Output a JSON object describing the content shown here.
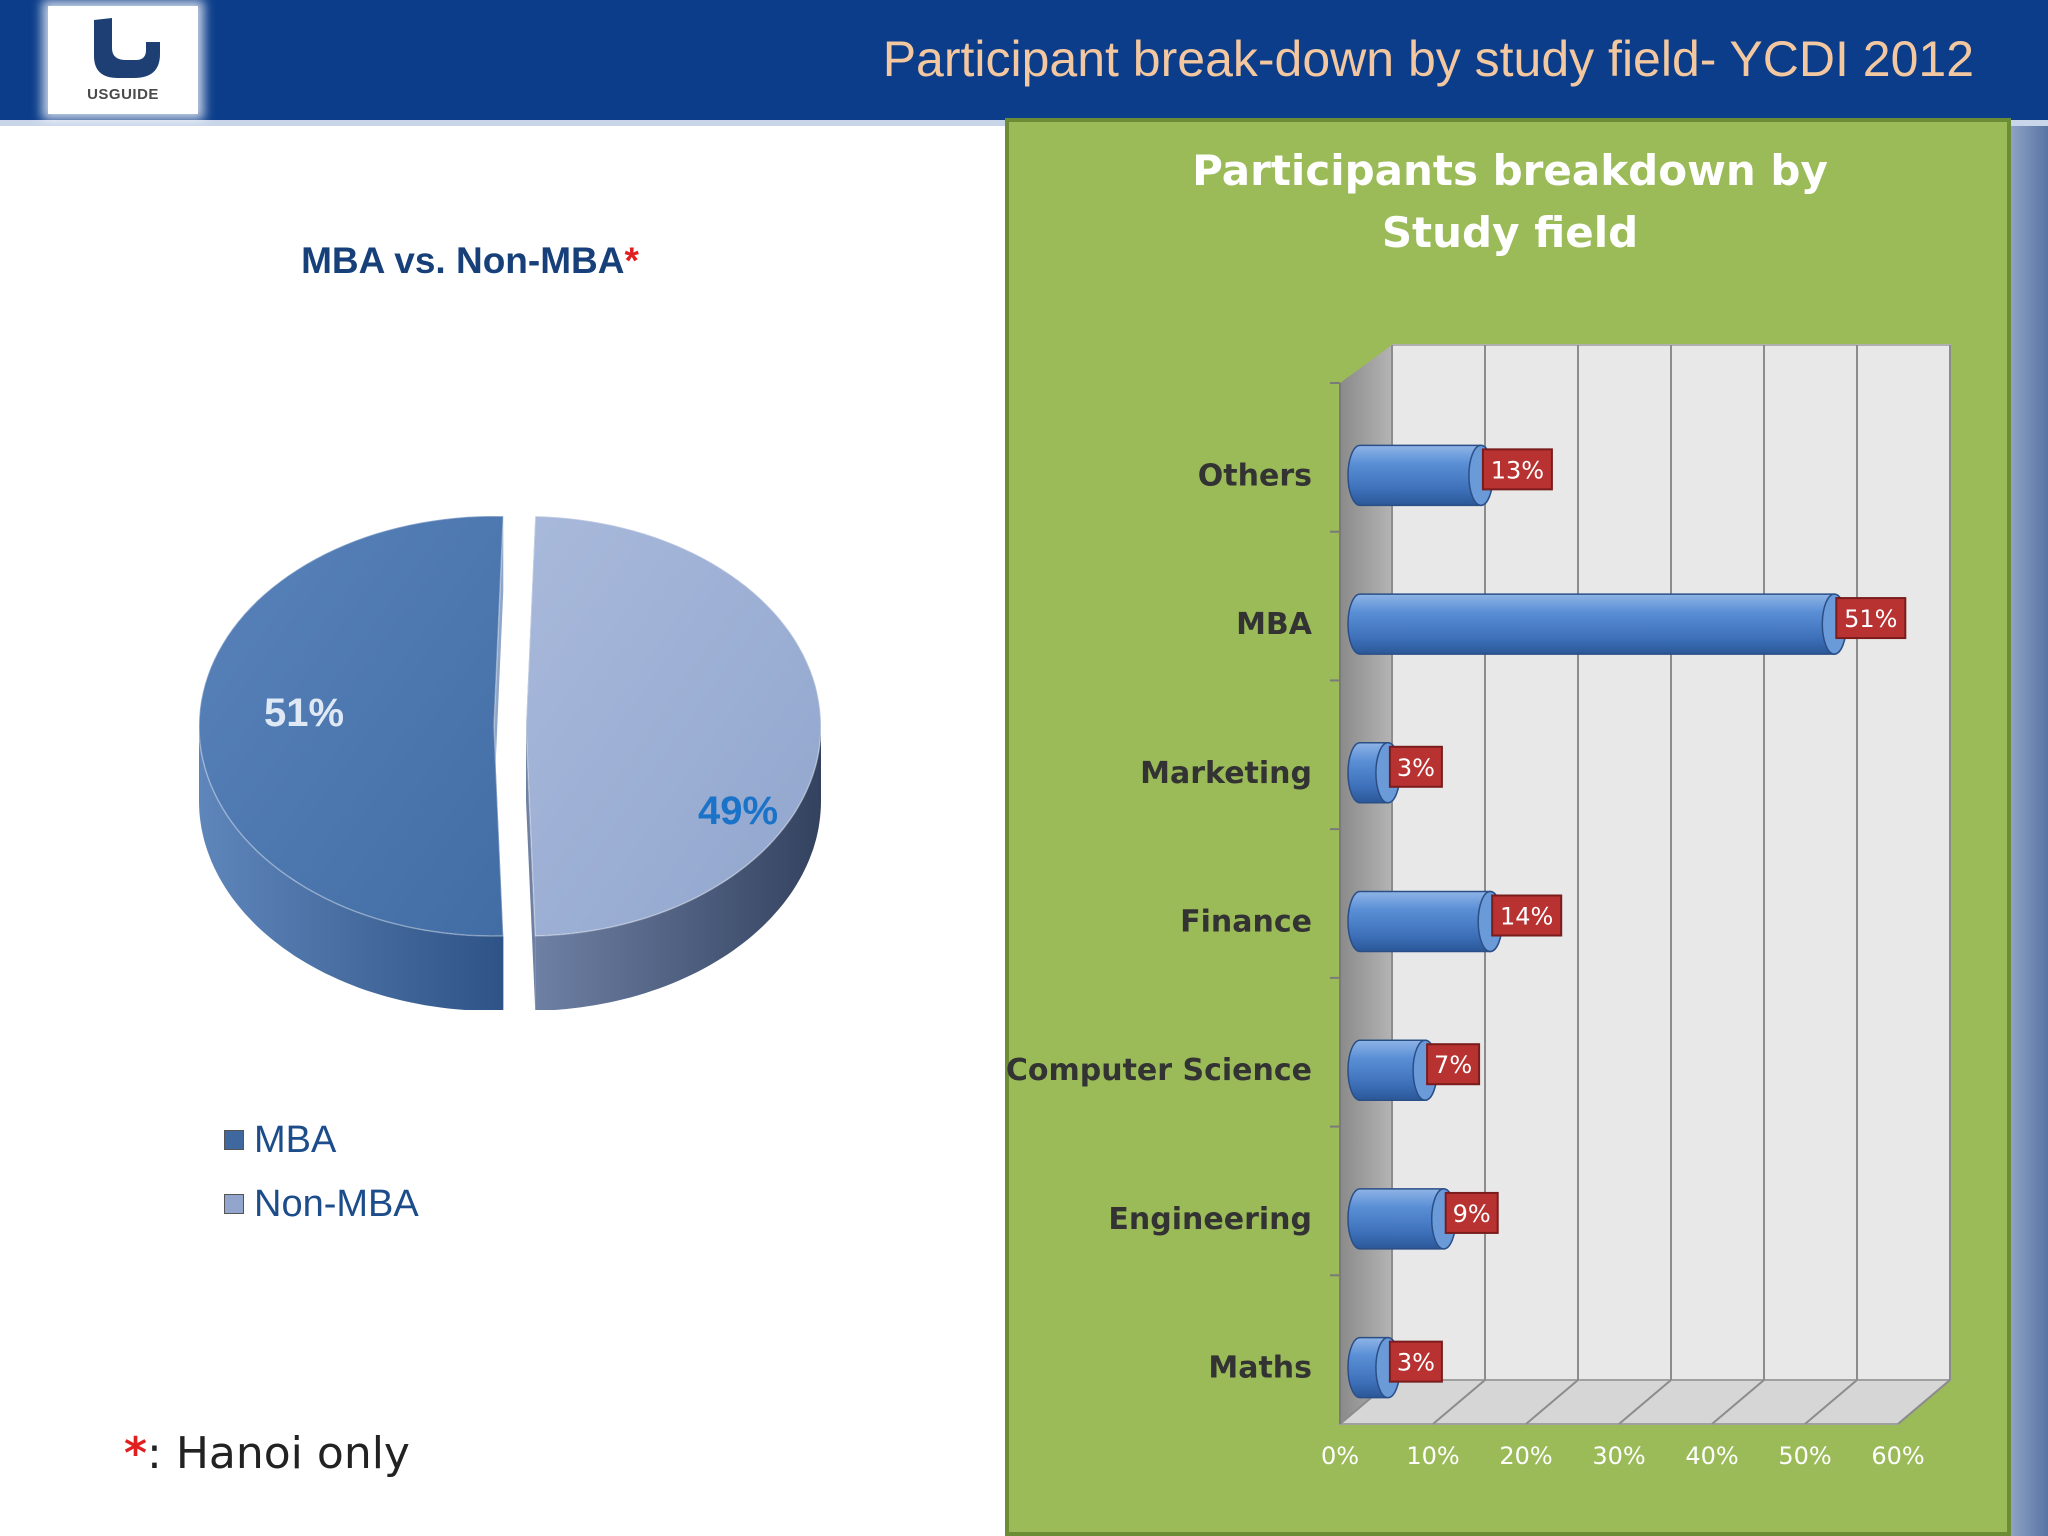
{
  "slide": {
    "title": "Participant break-down by study field- YCDI 2012",
    "logo_text": "USGUIDE",
    "footnote_star": "*",
    "footnote_text": ": Hanoi only"
  },
  "colors": {
    "header": "#0b3d8a",
    "title_text": "#f3c79f",
    "panel_green": "#9bbb59",
    "mba_slice": "#4f79b0",
    "non_mba_slice": "#9dafd3",
    "bar_blue": "#4a7fc4",
    "label_red": "#b83232"
  },
  "chart_data": [
    {
      "type": "pie",
      "title": "MBA vs. Non-MBA",
      "title_marker": "*",
      "categories": [
        "MBA",
        "Non-MBA"
      ],
      "values": [
        51,
        49
      ],
      "data_labels": [
        "51%",
        "49%"
      ],
      "legend": [
        "MBA",
        "Non-MBA"
      ],
      "legend_position": "bottom-left",
      "style": "3d-exploded"
    },
    {
      "type": "bar",
      "orientation": "horizontal",
      "title": "Participants breakdown by Study field",
      "categories": [
        "Others",
        "MBA",
        "Marketing",
        "Finance",
        "Computer Science",
        "Engineering",
        "Maths"
      ],
      "values": [
        13,
        51,
        3,
        14,
        7,
        9,
        3
      ],
      "data_labels": [
        "13%",
        "51%",
        "3%",
        "14%",
        "7%",
        "9%",
        "3%"
      ],
      "xlim": [
        0,
        60
      ],
      "xticks": [
        "0%",
        "10%",
        "20%",
        "30%",
        "40%",
        "50%",
        "60%"
      ],
      "grid": true,
      "style": "3d-cylinder"
    }
  ]
}
